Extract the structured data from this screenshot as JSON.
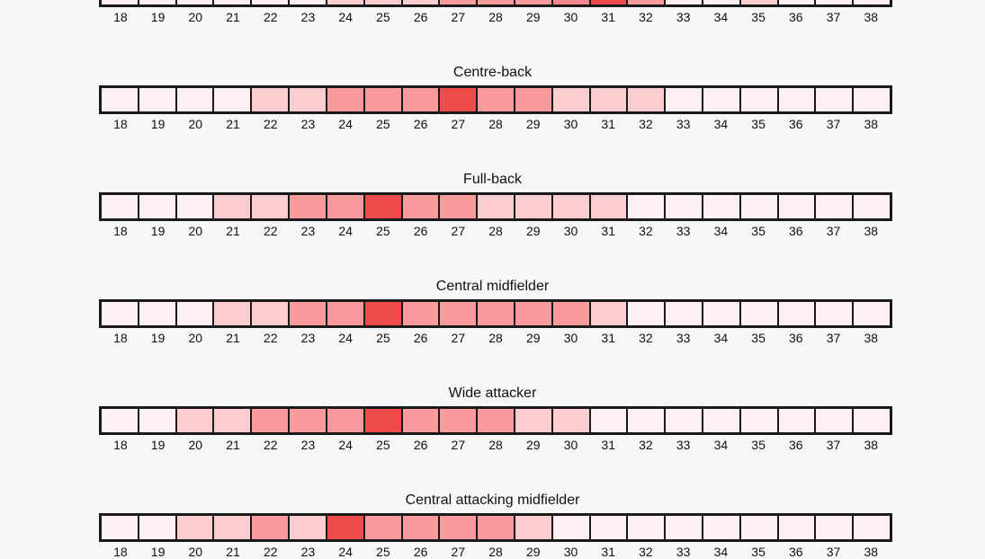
{
  "chart_data": {
    "type": "heatmap",
    "ages": [
      18,
      19,
      20,
      21,
      22,
      23,
      24,
      25,
      26,
      27,
      28,
      29,
      30,
      31,
      32,
      33,
      34,
      35,
      36,
      37,
      38
    ],
    "color_scale": [
      "#fdf0f3",
      "#fccdd0",
      "#f99a9d",
      "#f5878a",
      "#ee4b4b"
    ],
    "rows": [
      {
        "title": "",
        "values": [
          0,
          0,
          0,
          0,
          0,
          0,
          1,
          1,
          1,
          2,
          2,
          2,
          3,
          4,
          2,
          0,
          0,
          1,
          0,
          0,
          0
        ]
      },
      {
        "title": "Centre-back",
        "values": [
          0,
          0,
          0,
          0,
          1,
          1,
          2,
          2,
          2,
          4,
          2,
          2,
          1,
          1,
          1,
          0,
          0,
          0,
          0,
          0,
          0
        ]
      },
      {
        "title": "Full-back",
        "values": [
          0,
          0,
          0,
          1,
          1,
          2,
          2,
          4,
          2,
          2,
          1,
          1,
          1,
          1,
          0,
          0,
          0,
          0,
          0,
          0,
          0
        ]
      },
      {
        "title": "Central midfielder",
        "values": [
          0,
          0,
          0,
          1,
          1,
          2,
          2,
          4,
          2,
          2,
          2,
          2,
          2,
          1,
          0,
          0,
          0,
          0,
          0,
          0,
          0
        ]
      },
      {
        "title": "Wide attacker",
        "values": [
          0,
          0,
          1,
          1,
          2,
          2,
          2,
          4,
          2,
          2,
          2,
          1,
          1,
          0,
          0,
          0,
          0,
          0,
          0,
          0,
          0
        ]
      },
      {
        "title": "Central attacking midfielder",
        "values": [
          0,
          0,
          1,
          1,
          2,
          1,
          4,
          2,
          2,
          2,
          2,
          1,
          0,
          0,
          0,
          0,
          0,
          0,
          0,
          0,
          0
        ]
      }
    ]
  }
}
